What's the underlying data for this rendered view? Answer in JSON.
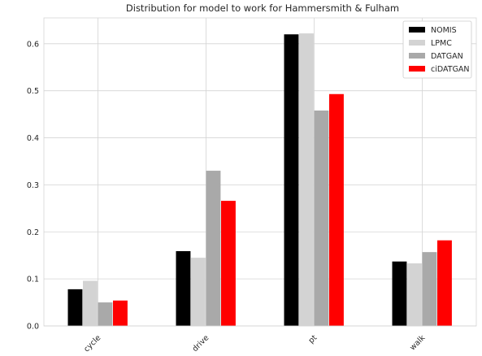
{
  "chart_data": {
    "type": "bar",
    "title": "Distribution for model to work for Hammersmith & Fulham",
    "xlabel": "",
    "ylabel": "",
    "categories": [
      "cycle",
      "drive",
      "pt",
      "walk"
    ],
    "ylim": [
      0,
      0.655
    ],
    "yticks": [
      "0.0",
      "0.1",
      "0.2",
      "0.3",
      "0.4",
      "0.5",
      "0.6"
    ],
    "grid": true,
    "legend_position": "top-right",
    "series": [
      {
        "name": "NOMIS",
        "color": "#000000",
        "values": [
          0.078,
          0.159,
          0.62,
          0.137
        ]
      },
      {
        "name": "LPMC",
        "color": "#d3d3d3",
        "values": [
          0.096,
          0.145,
          0.622,
          0.133
        ]
      },
      {
        "name": "DATGAN",
        "color": "#a9a9a9",
        "values": [
          0.05,
          0.33,
          0.458,
          0.157
        ]
      },
      {
        "name": "ciDATGAN",
        "color": "#ff0000",
        "values": [
          0.054,
          0.266,
          0.493,
          0.182
        ]
      }
    ]
  }
}
